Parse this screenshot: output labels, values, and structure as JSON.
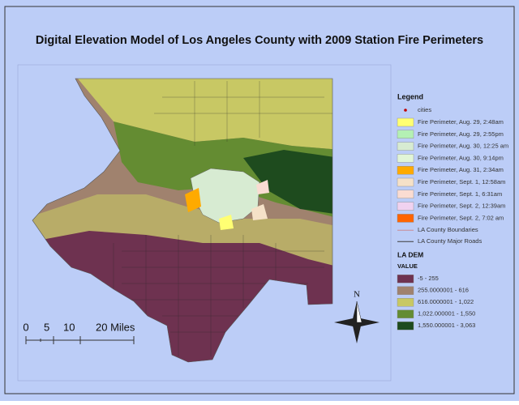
{
  "title": "Digital Elevation Model of Los Angeles County with 2009 Station Fire Perimeters",
  "legend": {
    "heading": "Legend",
    "cities": {
      "label": "cities",
      "color": "#c00000"
    },
    "perimeters": [
      {
        "label": "Fire Perimeter, Aug. 29, 2:48am",
        "color": "#ffff73"
      },
      {
        "label": "Fire Perimeter, Aug. 29, 2:55pm",
        "color": "#b4f0b4"
      },
      {
        "label": "Fire Perimeter, Aug. 30, 12:25 am",
        "color": "#d7ebd2"
      },
      {
        "label": "Fire Perimeter, Aug. 30, 9:14pm",
        "color": "#e1f5d7"
      },
      {
        "label": "Fire Perimeter, Aug. 31, 2:34am",
        "color": "#ffaa00"
      },
      {
        "label": "Fire Perimeter, Sept. 1, 12:58am",
        "color": "#f5e1c8"
      },
      {
        "label": "Fire Perimeter, Sept. 1, 6:31am",
        "color": "#fadcd2"
      },
      {
        "label": "Fire Perimeter, Sept. 2, 12:39am",
        "color": "#f0d2f0"
      },
      {
        "label": "Fire Perimeter, Sept. 2, 7:02 am",
        "color": "#ff6400"
      }
    ],
    "lines": [
      {
        "label": "LA County Boundaries",
        "color": "#c88c96"
      },
      {
        "label": "LA County Major Roads",
        "color": "#3c3c3c"
      }
    ],
    "dem_heading": "LA DEM",
    "value_heading": "VALUE",
    "classes": [
      {
        "label": "-5 - 255",
        "color": "#6e3250"
      },
      {
        "label": "255.0000001 - 616",
        "color": "#a0826e"
      },
      {
        "label": "616.0000001 - 1,022",
        "color": "#c8c864"
      },
      {
        "label": "1,022.000001 - 1,550",
        "color": "#648c32"
      },
      {
        "label": "1,550.000001 - 3,063",
        "color": "#1e4b1e"
      }
    ]
  },
  "scale": {
    "labels": [
      "0",
      "5",
      "10",
      "20 Miles"
    ]
  },
  "north": "N"
}
